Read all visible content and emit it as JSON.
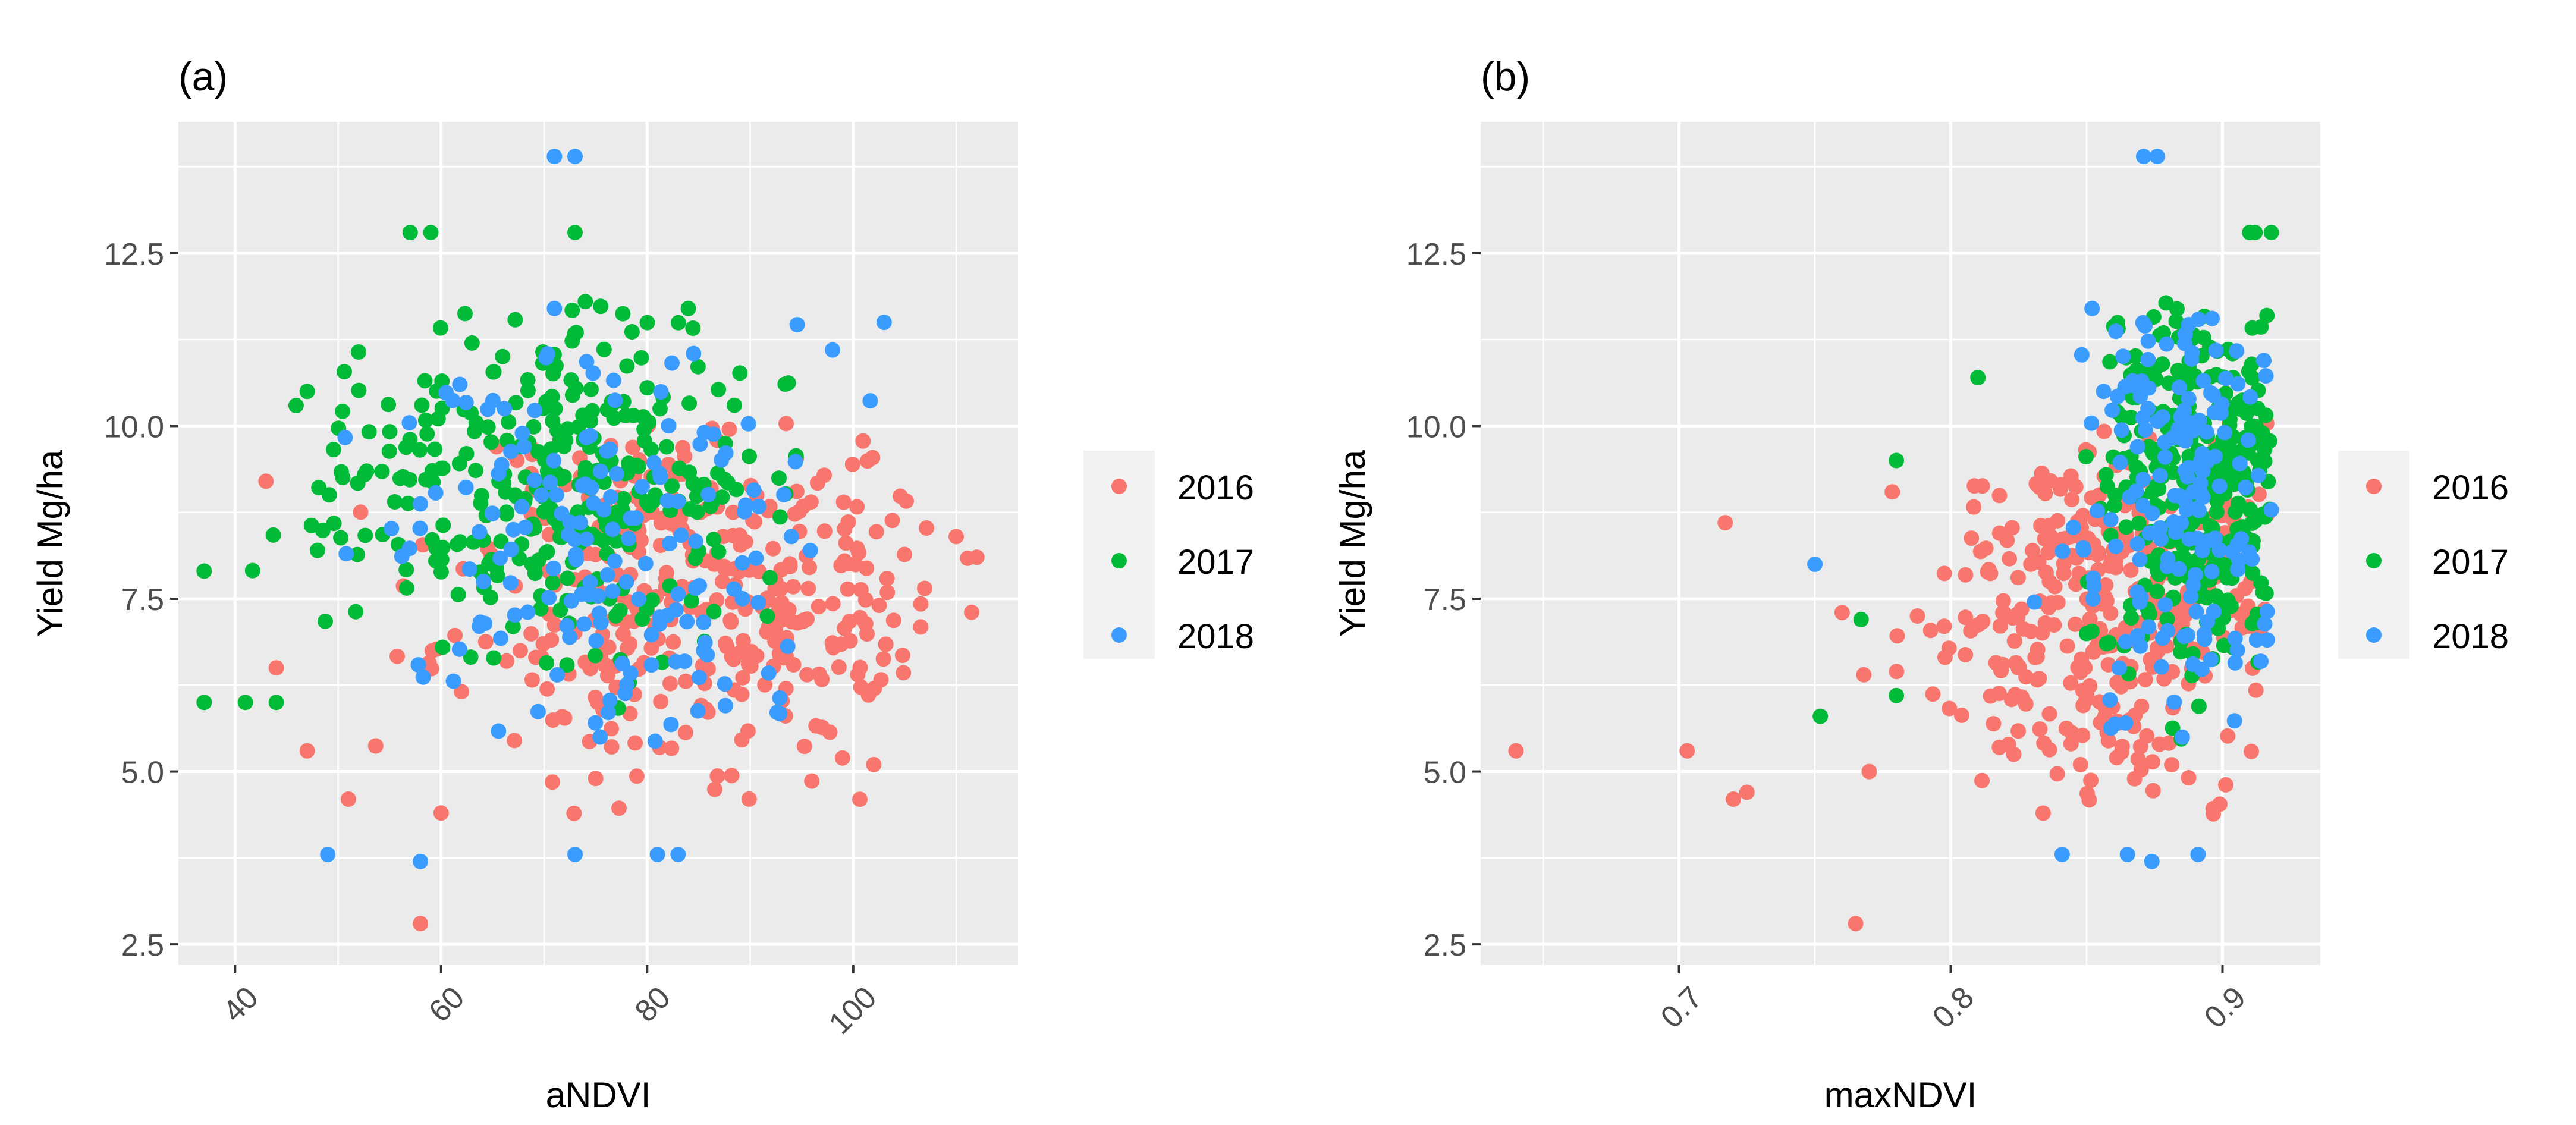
{
  "figure": {
    "panels": [
      "a",
      "b"
    ]
  },
  "colors": {
    "2016": "#F8766D",
    "2017": "#00BA38",
    "2018": "#3B9CFF",
    "panel_background": "#EBEBEB",
    "grid": "#FFFFFF",
    "text": "#000000",
    "tick_text": "#4D4D4D"
  },
  "chart_data": [
    {
      "type": "scatter",
      "panel_label": "(a)",
      "title": "",
      "xlabel": "aNDVI",
      "ylabel": "Yield Mg/ha",
      "xlim": [
        34.5,
        116
      ],
      "ylim": [
        2.2,
        14.4
      ],
      "x_ticks": [
        40,
        60,
        80,
        100
      ],
      "x_tick_labels": [
        "40",
        "60",
        "80",
        "100"
      ],
      "y_ticks": [
        2.5,
        5.0,
        7.5,
        10.0,
        12.5
      ],
      "y_tick_labels": [
        "2.5",
        "5.0",
        "7.5",
        "10.0",
        "12.5"
      ],
      "grid": true,
      "legend": {
        "position": "right",
        "entries": [
          "2016",
          "2017",
          "2018"
        ]
      },
      "series": [
        {
          "name": "2016",
          "cluster": {
            "cx": 86,
            "cy": 7.6,
            "sx": 12,
            "sy": 1.3,
            "n": 360,
            "xmin": 43,
            "xmax": 112,
            "ymin": 4.2,
            "ymax": 10.1
          },
          "points": [
            [
              58,
              2.8
            ],
            [
              51,
              4.6
            ],
            [
              47,
              5.3
            ],
            [
              44,
              6.5
            ],
            [
              43,
              9.2
            ],
            [
              102,
              5.1
            ],
            [
              112,
              8.1
            ],
            [
              110,
              8.4
            ],
            [
              75,
              4.9
            ],
            [
              60,
              4.4
            ]
          ]
        },
        {
          "name": "2017",
          "cluster": {
            "cx": 70,
            "cy": 9.3,
            "sx": 10,
            "sy": 1.2,
            "n": 330,
            "xmin": 37,
            "xmax": 95,
            "ymin": 5.4,
            "ymax": 11.8
          },
          "points": [
            [
              57,
              12.8
            ],
            [
              59,
              12.8
            ],
            [
              73,
              12.8
            ],
            [
              37,
              7.9
            ],
            [
              37,
              6.0
            ],
            [
              41,
              6.0
            ],
            [
              44,
              6.0
            ],
            [
              47,
              10.5
            ],
            [
              84,
              11.7
            ],
            [
              74,
              11.8
            ],
            [
              63,
              11.2
            ],
            [
              48,
              8.2
            ]
          ]
        },
        {
          "name": "2018",
          "cluster": {
            "cx": 76,
            "cy": 8.2,
            "sx": 10,
            "sy": 1.6,
            "n": 170,
            "xmin": 48,
            "xmax": 104,
            "ymin": 5.4,
            "ymax": 11.5
          },
          "points": [
            [
              71,
              13.9
            ],
            [
              73,
              13.9
            ],
            [
              49,
              3.8
            ],
            [
              58,
              3.7
            ],
            [
              73,
              3.8
            ],
            [
              81,
              3.8
            ],
            [
              83,
              3.8
            ],
            [
              103,
              11.5
            ],
            [
              98,
              11.1
            ],
            [
              71,
              11.7
            ],
            [
              94,
              8.4
            ]
          ]
        }
      ]
    },
    {
      "type": "scatter",
      "panel_label": "(b)",
      "title": "",
      "xlabel": "maxNDVI",
      "ylabel": "Yield Mg/ha",
      "xlim": [
        0.627,
        0.936
      ],
      "ylim": [
        2.2,
        14.4
      ],
      "x_ticks": [
        0.7,
        0.8,
        0.9
      ],
      "x_tick_labels": [
        "0.7",
        "0.8",
        "0.9"
      ],
      "y_ticks": [
        2.5,
        5.0,
        7.5,
        10.0,
        12.5
      ],
      "y_tick_labels": [
        "2.5",
        "5.0",
        "7.5",
        "10.0",
        "12.5"
      ],
      "grid": true,
      "legend": {
        "position": "right",
        "entries": [
          "2016",
          "2017",
          "2018"
        ]
      },
      "series": [
        {
          "name": "2016",
          "cluster": {
            "cx": 0.86,
            "cy": 7.3,
            "sx": 0.035,
            "sy": 1.3,
            "n": 360,
            "xmin": 0.775,
            "xmax": 0.917,
            "ymin": 4.3,
            "ymax": 10.1
          },
          "points": [
            [
              0.64,
              5.3
            ],
            [
              0.703,
              5.3
            ],
            [
              0.717,
              8.6
            ],
            [
              0.72,
              4.6
            ],
            [
              0.725,
              4.7
            ],
            [
              0.765,
              2.8
            ],
            [
              0.76,
              7.3
            ],
            [
              0.768,
              6.4
            ],
            [
              0.77,
              5.0
            ]
          ]
        },
        {
          "name": "2017",
          "cluster": {
            "cx": 0.895,
            "cy": 9.3,
            "sx": 0.02,
            "sy": 1.4,
            "n": 330,
            "xmin": 0.83,
            "xmax": 0.918,
            "ymin": 5.4,
            "ymax": 11.8
          },
          "points": [
            [
              0.91,
              12.8
            ],
            [
              0.912,
              12.8
            ],
            [
              0.918,
              12.8
            ],
            [
              0.752,
              5.8
            ],
            [
              0.767,
              7.2
            ],
            [
              0.78,
              9.5
            ],
            [
              0.81,
              10.7
            ],
            [
              0.78,
              6.1
            ]
          ]
        },
        {
          "name": "2018",
          "cluster": {
            "cx": 0.885,
            "cy": 8.9,
            "sx": 0.02,
            "sy": 1.6,
            "n": 170,
            "xmin": 0.83,
            "xmax": 0.918,
            "ymin": 5.4,
            "ymax": 11.7
          },
          "points": [
            [
              0.871,
              13.9
            ],
            [
              0.876,
              13.9
            ],
            [
              0.75,
              8.0
            ],
            [
              0.841,
              3.8
            ],
            [
              0.865,
              3.8
            ],
            [
              0.874,
              3.7
            ],
            [
              0.891,
              3.8
            ],
            [
              0.852,
              11.7
            ]
          ]
        }
      ]
    }
  ]
}
